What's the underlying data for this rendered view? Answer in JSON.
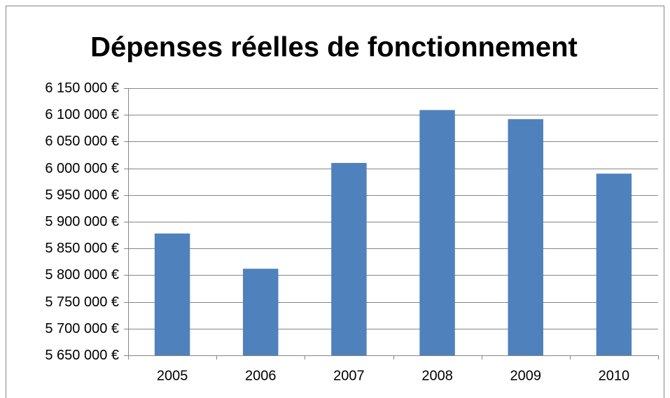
{
  "chart_data": {
    "type": "bar",
    "title": "Dépenses réelles de fonctionnement",
    "categories": [
      "2005",
      "2006",
      "2007",
      "2008",
      "2009",
      "2010"
    ],
    "values": [
      5878000,
      5812000,
      6010000,
      6109000,
      6092000,
      5990000
    ],
    "color": "#4f81bd",
    "ylim": [
      5650000,
      6150000
    ],
    "yticks": [
      {
        "value": 5650000,
        "label": "5 650 000 €"
      },
      {
        "value": 5700000,
        "label": "5 700 000 €"
      },
      {
        "value": 5750000,
        "label": "5 750 000 €"
      },
      {
        "value": 5800000,
        "label": "5 800 000 €"
      },
      {
        "value": 5850000,
        "label": "5 850 000 €"
      },
      {
        "value": 5900000,
        "label": "5 900 000 €"
      },
      {
        "value": 5950000,
        "label": "5 950 000 €"
      },
      {
        "value": 6000000,
        "label": "6 000 000 €"
      },
      {
        "value": 6050000,
        "label": "6 050 000 €"
      },
      {
        "value": 6100000,
        "label": "6 100 000 €"
      },
      {
        "value": 6150000,
        "label": "6 150 000 €"
      }
    ],
    "grid": true
  }
}
